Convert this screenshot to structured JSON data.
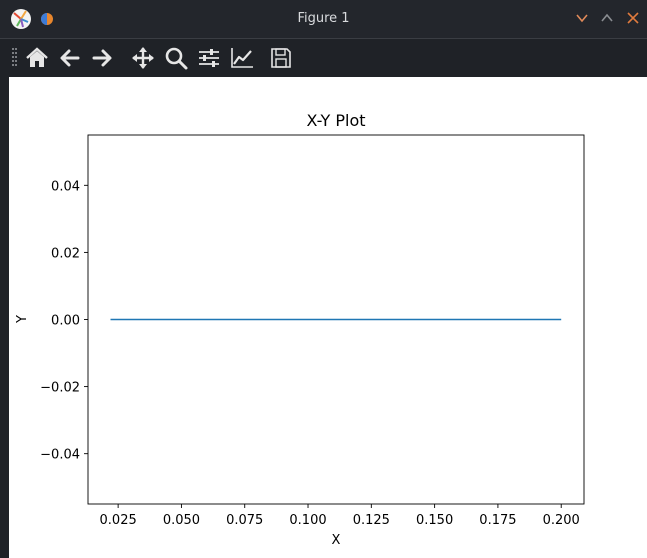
{
  "window": {
    "title": "Figure 1"
  },
  "colors": {
    "titlebar_bg": "#23262c",
    "toolbar_bg": "#1f2227",
    "canvas_bg": "#ffffff",
    "minimize_color": "#e08a5a",
    "close_color": "#e07b3e",
    "series_color": "#1f77b4"
  },
  "toolbar": {
    "items": [
      {
        "name": "home-icon"
      },
      {
        "name": "back-arrow-icon"
      },
      {
        "name": "forward-arrow-icon"
      },
      {
        "name": "pan-icon"
      },
      {
        "name": "zoom-icon"
      },
      {
        "name": "configure-subplots-icon"
      },
      {
        "name": "edit-axis-icon"
      },
      {
        "name": "save-icon"
      }
    ]
  },
  "chart_data": {
    "type": "line",
    "title": "X-Y Plot",
    "xlabel": "X",
    "ylabel": "Y",
    "xlim": [
      0.0131,
      0.209
    ],
    "ylim": [
      -0.055,
      0.055
    ],
    "xticks": [
      0.025,
      0.05,
      0.075,
      0.1,
      0.125,
      0.15,
      0.175,
      0.2
    ],
    "xtick_labels": [
      "0.025",
      "0.050",
      "0.075",
      "0.100",
      "0.125",
      "0.150",
      "0.175",
      "0.200"
    ],
    "yticks": [
      -0.04,
      -0.02,
      0.0,
      0.02,
      0.04
    ],
    "ytick_labels": [
      "−0.04",
      "−0.02",
      "0.00",
      "0.02",
      "0.04"
    ],
    "grid": false,
    "series": [
      {
        "x": [
          0.022,
          0.2
        ],
        "y": [
          0.0,
          0.0
        ],
        "color": "#1f77b4"
      }
    ]
  }
}
